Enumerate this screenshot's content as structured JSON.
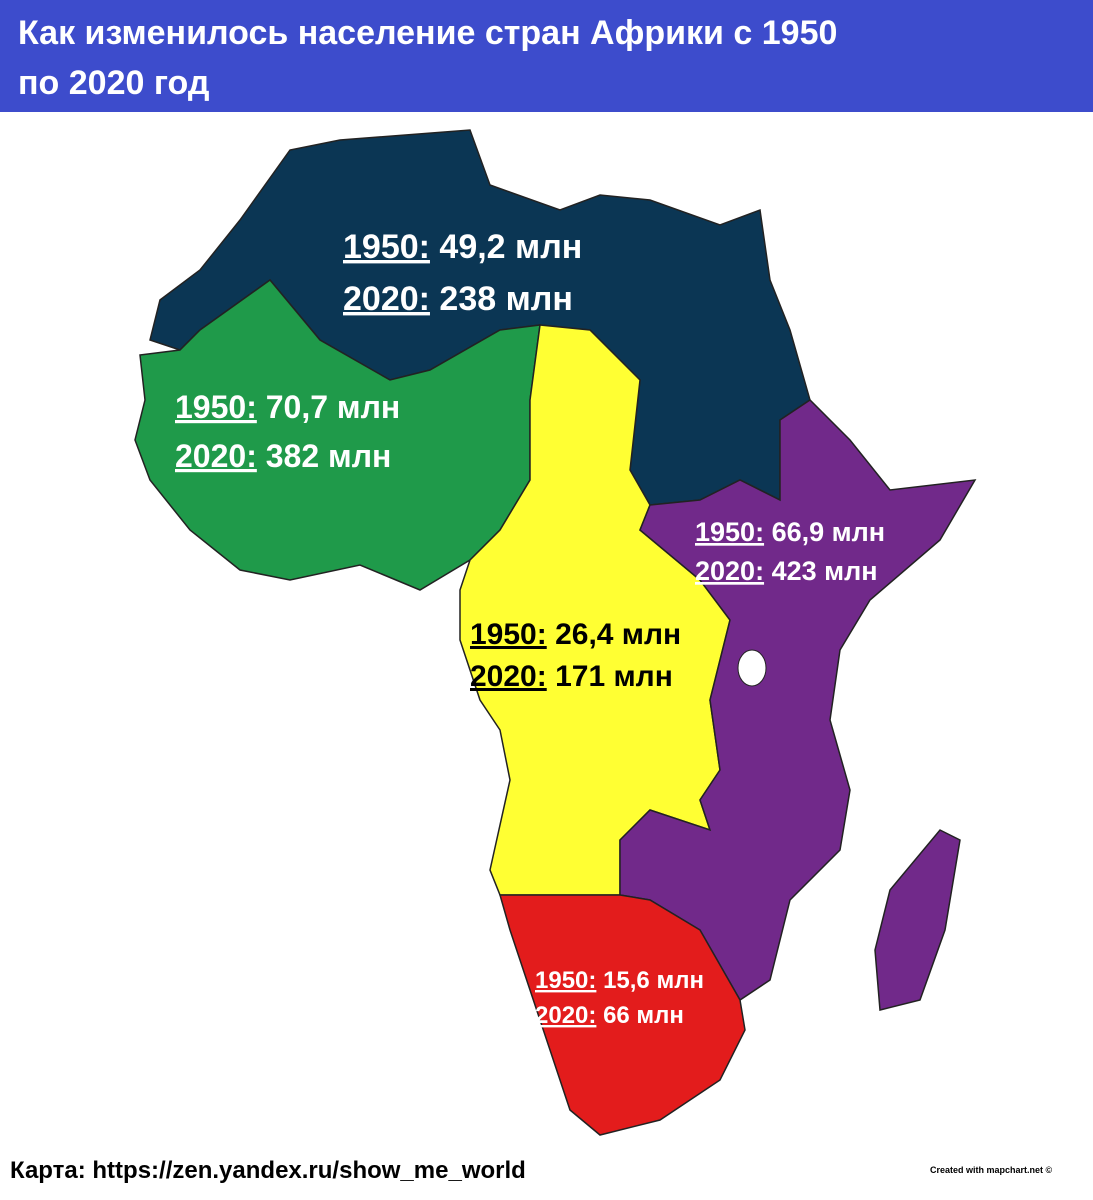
{
  "header": {
    "title_line1": "Как изменилось население стран Африки с 1950",
    "title_line2": "по 2020 год"
  },
  "regions": [
    {
      "name_color": "#0b3654",
      "year1": "1950:",
      "value1": "49,2 млн",
      "year2": "2020:",
      "value2": "238 млн"
    },
    {
      "name_color": "#1f9a4a",
      "year1": "1950:",
      "value1": "70,7 млн",
      "year2": "2020:",
      "value2": "382 млн"
    },
    {
      "name_color": "#71298a",
      "year1": "1950:",
      "value1": "66,9 млн",
      "year2": "2020:",
      "value2": "423 млн"
    },
    {
      "name_color": "#ffff33",
      "year1": "1950:",
      "value1": "26,4 млн",
      "year2": "2020:",
      "value2": "171 млн"
    },
    {
      "name_color": "#e31c1c",
      "year1": "1950:",
      "value1": "15,6 млн",
      "year2": "2020:",
      "value2": "66 млн"
    }
  ],
  "footer": {
    "source": "Карта: https://zen.yandex.ru/show_me_world",
    "credit": "Created with mapchart.net ©"
  }
}
